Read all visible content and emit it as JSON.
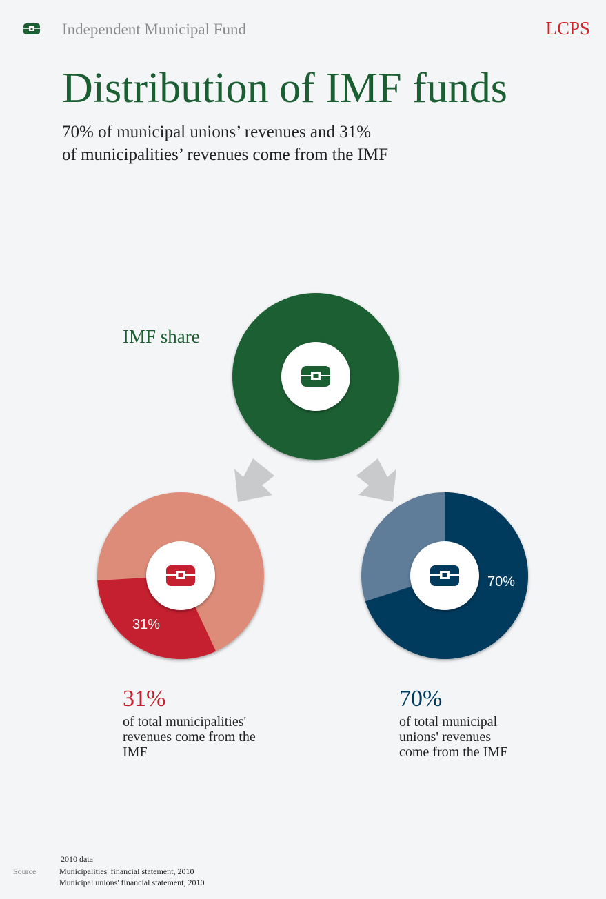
{
  "header": {
    "section": "Independent Municipal Fund",
    "brand": "LCPS"
  },
  "title": "Distribution of IMF funds",
  "subtitle": [
    "70% of municipal unions’ revenues and 31%",
    "of municipalities’ revenues come from the IMF"
  ],
  "share_label": "IMF share",
  "chart_data": [
    {
      "type": "pie",
      "values": [
        31
      ],
      "value_labels": [
        "31%"
      ],
      "color": "#c4202f",
      "rest_color": "#dd8c79",
      "note": [
        "of total municipalities'",
        "revenues come from the",
        "IMF"
      ]
    },
    {
      "type": "pie",
      "values": [
        70
      ],
      "value_labels": [
        "70%"
      ],
      "color": "#003a5d",
      "rest_color": "#5f7c98",
      "note": [
        "of total municipal",
        "unions' revenues",
        "come from the IMF"
      ]
    }
  ],
  "source": {
    "label": "Source",
    "lines": [
      "2010 data",
      "Municipalities' financial statement, 2010",
      "Municipal unions' financial statement, 2010"
    ]
  }
}
